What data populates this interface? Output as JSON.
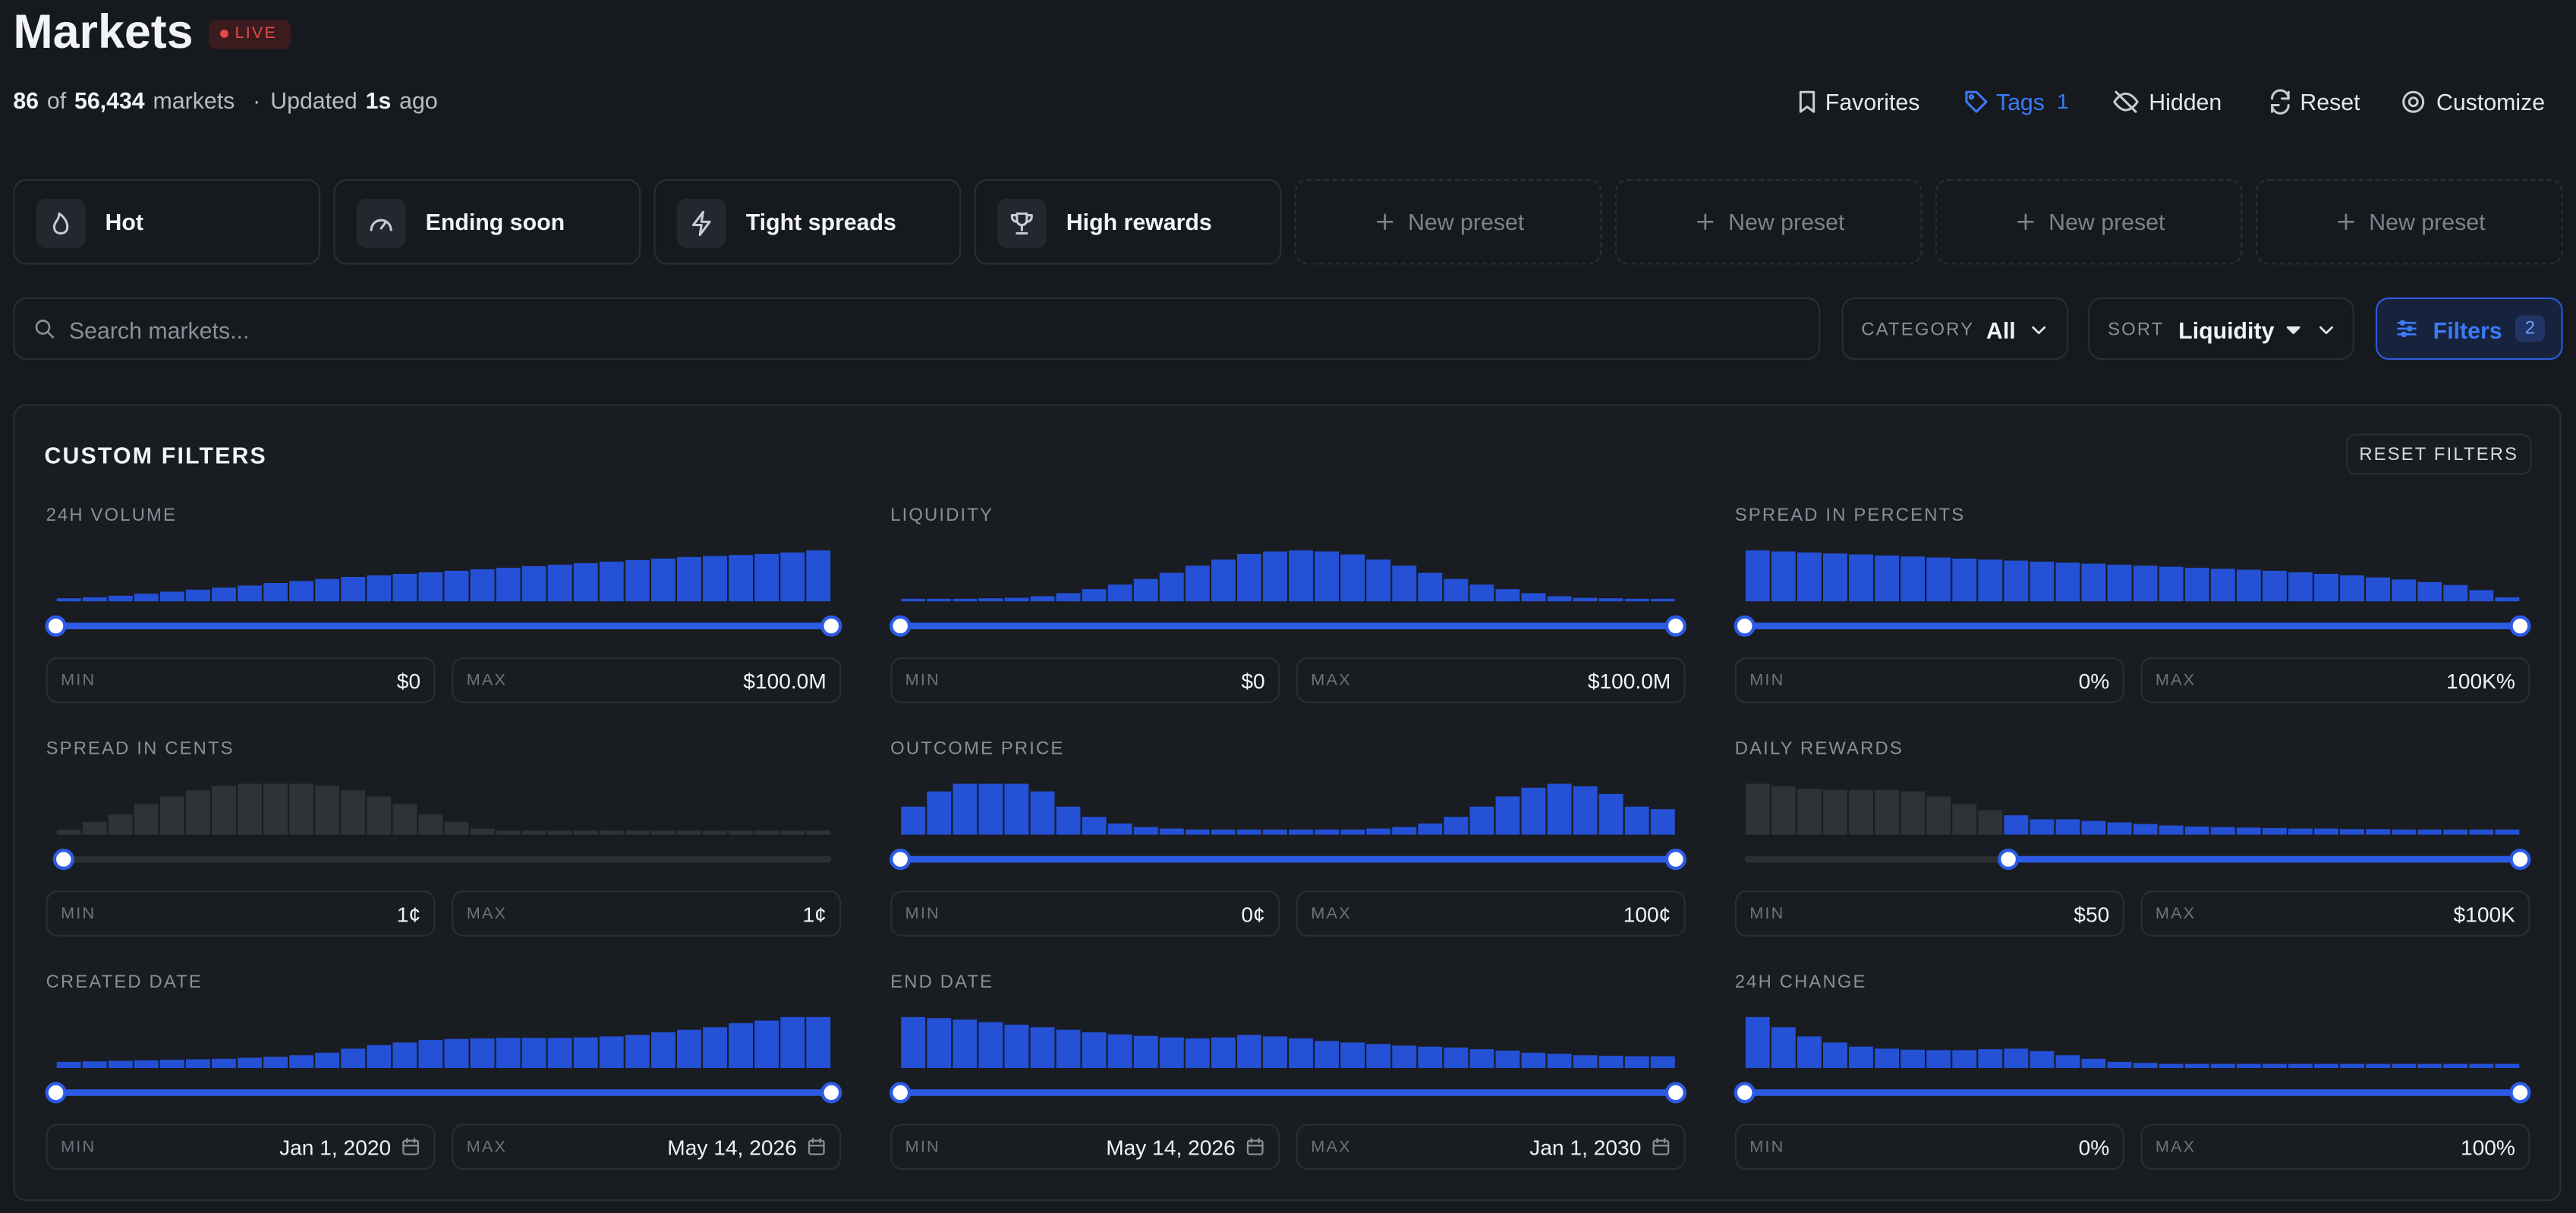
{
  "header": {
    "title": "Markets",
    "badge": "LIVE",
    "summary": {
      "count": "86",
      "of": "of",
      "total": "56,434",
      "markets": "markets",
      "separator": "·",
      "updated": "Updated",
      "age": "1s",
      "ago": "ago"
    }
  },
  "toolbar": [
    {
      "label": "Favorites"
    },
    {
      "label": "Tags",
      "count": "1"
    },
    {
      "label": "Hidden"
    },
    {
      "label": "Reset"
    },
    {
      "label": "Customize"
    }
  ],
  "presets": [
    {
      "label": "Hot"
    },
    {
      "label": "Ending soon"
    },
    {
      "label": "Tight spreads"
    },
    {
      "label": "High rewards"
    },
    {
      "label": "New preset"
    },
    {
      "label": "New preset"
    },
    {
      "label": "New preset"
    },
    {
      "label": "New preset"
    }
  ],
  "search": {
    "placeholder": "Search markets..."
  },
  "category": {
    "label": "CATEGORY",
    "value": "All"
  },
  "sort": {
    "label": "SORT",
    "value": "Liquidity"
  },
  "filters_button": {
    "label": "Filters",
    "count": "2"
  },
  "panel": {
    "title": "CUSTOM FILTERS",
    "reset": "RESET FILTERS",
    "min_label": "MIN",
    "max_label": "MAX",
    "filters": [
      {
        "label": "24H VOLUME",
        "min": "$0",
        "max": "$100.0M",
        "handles": [
          0,
          1
        ],
        "bars": [
          6,
          8,
          11,
          15,
          19,
          23,
          27,
          31,
          36,
          40,
          44,
          48,
          51,
          54,
          57,
          60,
          63,
          66,
          69,
          72,
          75,
          78,
          81,
          84,
          87,
          89,
          91,
          93,
          96,
          100
        ]
      },
      {
        "label": "LIQUIDITY",
        "min": "$0",
        "max": "$100.0M",
        "handles": [
          0,
          1
        ],
        "bars": [
          5,
          5,
          5,
          6,
          7,
          10,
          16,
          24,
          33,
          44,
          56,
          70,
          82,
          93,
          98,
          100,
          98,
          92,
          82,
          70,
          56,
          44,
          33,
          24,
          16,
          10,
          7,
          6,
          5,
          5
        ]
      },
      {
        "label": "SPREAD IN PERCENTS",
        "min": "0%",
        "max": "100K%",
        "handles": [
          0,
          1
        ],
        "bars": [
          100,
          98,
          96,
          94,
          92,
          90,
          88,
          86,
          84,
          82,
          80,
          78,
          76,
          74,
          72,
          70,
          68,
          66,
          64,
          62,
          60,
          57,
          54,
          51,
          47,
          43,
          38,
          32,
          22,
          8
        ]
      },
      {
        "label": "SPREAD IN CENTS",
        "min": "1¢",
        "max": "1¢",
        "handles": [
          0.01,
          0.01
        ],
        "bars": [
          10,
          25,
          40,
          60,
          75,
          87,
          96,
          100,
          100,
          100,
          96,
          87,
          75,
          60,
          40,
          25,
          12,
          8,
          8,
          8,
          8,
          8,
          8,
          8,
          8,
          8,
          8,
          8,
          8,
          8
        ]
      },
      {
        "label": "OUTCOME PRICE",
        "min": "0¢",
        "max": "100¢",
        "handles": [
          0,
          1
        ],
        "bars": [
          55,
          85,
          100,
          100,
          100,
          85,
          55,
          35,
          22,
          15,
          12,
          10,
          10,
          10,
          10,
          10,
          10,
          10,
          12,
          15,
          22,
          35,
          55,
          75,
          92,
          100,
          95,
          80,
          55,
          50
        ]
      },
      {
        "label": "DAILY REWARDS",
        "min": "$50",
        "max": "$100K",
        "handles": [
          0.34,
          1
        ],
        "bars": [
          100,
          95,
          90,
          88,
          88,
          88,
          85,
          75,
          60,
          48,
          38,
          30,
          30,
          27,
          24,
          21,
          18,
          16,
          15,
          14,
          13,
          12,
          12,
          11,
          11,
          10,
          10,
          10,
          10,
          10
        ]
      },
      {
        "label": "CREATED DATE",
        "min": "Jan 1, 2020",
        "max": "May 14, 2026",
        "date": true,
        "handles": [
          0,
          1
        ],
        "bars": [
          12,
          13,
          14,
          15,
          16,
          17,
          18,
          20,
          22,
          25,
          30,
          38,
          45,
          50,
          55,
          57,
          58,
          59,
          59,
          59,
          60,
          62,
          65,
          70,
          75,
          80,
          88,
          93,
          100,
          100
        ]
      },
      {
        "label": "END DATE",
        "min": "May 14, 2026",
        "max": "Jan 1, 2030",
        "date": true,
        "handles": [
          0,
          1
        ],
        "bars": [
          100,
          98,
          95,
          90,
          85,
          80,
          75,
          70,
          66,
          63,
          60,
          58,
          60,
          65,
          62,
          58,
          53,
          50,
          47,
          44,
          42,
          40,
          37,
          34,
          30,
          28,
          25,
          24,
          23,
          23
        ]
      },
      {
        "label": "24H CHANGE",
        "min": "0%",
        "max": "100%",
        "handles": [
          0,
          1
        ],
        "bars": [
          100,
          80,
          62,
          50,
          42,
          38,
          36,
          35,
          35,
          37,
          38,
          33,
          25,
          18,
          12,
          10,
          8,
          8,
          8,
          8,
          8,
          8,
          8,
          8,
          8,
          8,
          8,
          8,
          8,
          8
        ]
      }
    ]
  }
}
